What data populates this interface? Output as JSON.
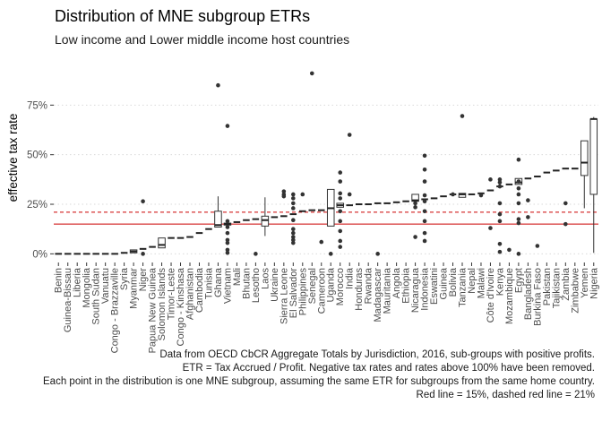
{
  "chart_data": {
    "type": "boxplot",
    "title": "Distribution of MNE subgroup ETRs",
    "subtitle": "Low income and Lower middle income host countries",
    "ylabel": "effective tax rate",
    "xlabel": "",
    "ylim": [
      -0.03,
      1.0
    ],
    "yticks": [
      {
        "value": 0,
        "label": "0%"
      },
      {
        "value": 0.25,
        "label": "25%"
      },
      {
        "value": 0.5,
        "label": "50%"
      },
      {
        "value": 0.75,
        "label": "75%"
      }
    ],
    "grid": "horizontal dotted",
    "reference_lines": [
      {
        "value": 0.15,
        "style": "solid",
        "color": "#cc0000"
      },
      {
        "value": 0.21,
        "style": "dashed",
        "color": "#cc0000"
      }
    ],
    "categories": [
      {
        "name": "Benin",
        "median": 0.0
      },
      {
        "name": "Guinea-Bissau",
        "median": 0.0
      },
      {
        "name": "Liberia",
        "median": 0.0
      },
      {
        "name": "Mongolia",
        "median": 0.0
      },
      {
        "name": "South Sudan",
        "median": 0.0
      },
      {
        "name": "Vanuatu",
        "median": 0.0
      },
      {
        "name": "Congo - Brazzaville",
        "median": 0.0
      },
      {
        "name": "Syria",
        "median": 0.005
      },
      {
        "name": "Myanmar",
        "median": 0.012,
        "q1": 0.005,
        "q3": 0.02
      },
      {
        "name": "Niger",
        "median": 0.025,
        "outliers": [
          0.265,
          0.0
        ]
      },
      {
        "name": "Papua New Guinea",
        "median": 0.035
      },
      {
        "name": "Solomon Islands",
        "median": 0.045,
        "q1": 0.03,
        "q3": 0.08
      },
      {
        "name": "Timor-Leste",
        "median": 0.08
      },
      {
        "name": "Congo - Kinshasa",
        "median": 0.08
      },
      {
        "name": "Afghanistan",
        "median": 0.085
      },
      {
        "name": "Cambodia",
        "median": 0.105
      },
      {
        "name": "Tunisia",
        "median": 0.125
      },
      {
        "name": "Ghana",
        "median": 0.145,
        "q1": 0.135,
        "q3": 0.215,
        "whisker_high": 0.29,
        "outliers": [
          0.85
        ]
      },
      {
        "name": "Vietnam",
        "median": 0.15,
        "q1": 0.145,
        "q3": 0.155,
        "outliers": [
          0.645,
          0.165,
          0.135,
          0.105,
          0.07,
          0.055,
          0.02,
          0.005
        ]
      },
      {
        "name": "Mali",
        "median": 0.16
      },
      {
        "name": "Bhutan",
        "median": 0.17
      },
      {
        "name": "Lesotho",
        "median": 0.175,
        "outliers": [
          0.0
        ]
      },
      {
        "name": "Laos",
        "median": 0.17,
        "q1": 0.14,
        "q3": 0.19,
        "whisker_low": 0.09,
        "whisker_high": 0.285
      },
      {
        "name": "Ukraine",
        "median": 0.185
      },
      {
        "name": "Sierra Leone",
        "median": 0.19,
        "outliers": [
          0.315,
          0.3,
          0.29
        ]
      },
      {
        "name": "El Salvador",
        "median": 0.2,
        "outliers": [
          0.3,
          0.28,
          0.255,
          0.23,
          0.17,
          0.125,
          0.105,
          0.085,
          0.07,
          0.055
        ]
      },
      {
        "name": "Philippines",
        "median": 0.215,
        "outliers": [
          0.3
        ]
      },
      {
        "name": "Senegal",
        "median": 0.22,
        "outliers": [
          0.91
        ]
      },
      {
        "name": "Cameroon",
        "median": 0.22,
        "outliers": [
          0.06
        ]
      },
      {
        "name": "Uganda",
        "median": 0.23,
        "q1": 0.14,
        "q3": 0.325,
        "outliers": [
          0.0
        ]
      },
      {
        "name": "Morocco",
        "median": 0.245,
        "q1": 0.235,
        "q3": 0.255,
        "outliers": [
          0.41,
          0.365,
          0.305,
          0.28,
          0.215,
          0.165,
          0.115,
          0.065,
          0.035
        ]
      },
      {
        "name": "India",
        "median": 0.245,
        "outliers": [
          0.6,
          0.3
        ]
      },
      {
        "name": "Honduras",
        "median": 0.25
      },
      {
        "name": "Rwanda",
        "median": 0.25
      },
      {
        "name": "Madagascar",
        "median": 0.255,
        "outliers": [
          0.0
        ]
      },
      {
        "name": "Mauritania",
        "median": 0.255
      },
      {
        "name": "Angola",
        "median": 0.26
      },
      {
        "name": "Ethiopia",
        "median": 0.265
      },
      {
        "name": "Nicaragua",
        "median": 0.27,
        "q1": 0.265,
        "q3": 0.3,
        "outliers": [
          0.085,
          0.255,
          0.235
        ]
      },
      {
        "name": "Indonesia",
        "median": 0.275,
        "outliers": [
          0.495,
          0.425,
          0.365,
          0.295,
          0.265,
          0.215,
          0.165,
          0.105,
          0.065
        ]
      },
      {
        "name": "Eswatini",
        "median": 0.28
      },
      {
        "name": "Guinea",
        "median": 0.29
      },
      {
        "name": "Bolivia",
        "median": 0.3,
        "outliers": [
          0.3
        ]
      },
      {
        "name": "Tanzania",
        "median": 0.3,
        "q1": 0.285,
        "q3": 0.305,
        "outliers": [
          0.695
        ]
      },
      {
        "name": "Nepal",
        "median": 0.3
      },
      {
        "name": "Malawi",
        "median": 0.305,
        "outliers": [
          0.295
        ]
      },
      {
        "name": "Côte d'Ivoire",
        "median": 0.32,
        "outliers": [
          0.375,
          0.13
        ]
      },
      {
        "name": "Kenya",
        "median": 0.34,
        "outliers": [
          0.375,
          0.36,
          0.34,
          0.255,
          0.2,
          0.165,
          0.05,
          0.01
        ]
      },
      {
        "name": "Mozambique",
        "median": 0.35,
        "outliers": [
          0.02
        ]
      },
      {
        "name": "Egypt",
        "median": 0.36,
        "q1": 0.35,
        "q3": 0.38,
        "outliers": [
          0.475,
          0.365,
          0.33,
          0.3,
          0.255,
          0.175,
          0.155,
          0.0
        ]
      },
      {
        "name": "Bangladesh",
        "median": 0.38,
        "outliers": [
          0.27,
          0.185
        ]
      },
      {
        "name": "Burkina Faso",
        "median": 0.39,
        "outliers": [
          0.04
        ]
      },
      {
        "name": "Pakistan",
        "median": 0.41
      },
      {
        "name": "Tajikistan",
        "median": 0.42
      },
      {
        "name": "Zambia",
        "median": 0.43,
        "outliers": [
          0.255,
          0.15
        ]
      },
      {
        "name": "Zimbabwe",
        "median": 0.43
      },
      {
        "name": "Yemen",
        "median": 0.46,
        "q1": 0.395,
        "q3": 0.57,
        "whisker_low": 0.23,
        "whisker_high": 0.57
      },
      {
        "name": "Nigeria",
        "median": 0.68,
        "q1": 0.3,
        "q3": 0.68,
        "whisker_low": 0.005,
        "whisker_high": 0.69
      }
    ]
  },
  "caption": {
    "line1": "Data from OECD CbCR Aggregate Totals by Jurisdiction, 2016, sub-groups with positive profits.",
    "line2": "ETR = Tax Accrued / Profit. Negative tax rates and rates above 100% have been removed.",
    "line3": "Each point in the distribution is one MNE subgroup, assuming the same ETR for subgroups from the same home country.",
    "line4": "Red line = 15%, dashed red line = 21%"
  }
}
